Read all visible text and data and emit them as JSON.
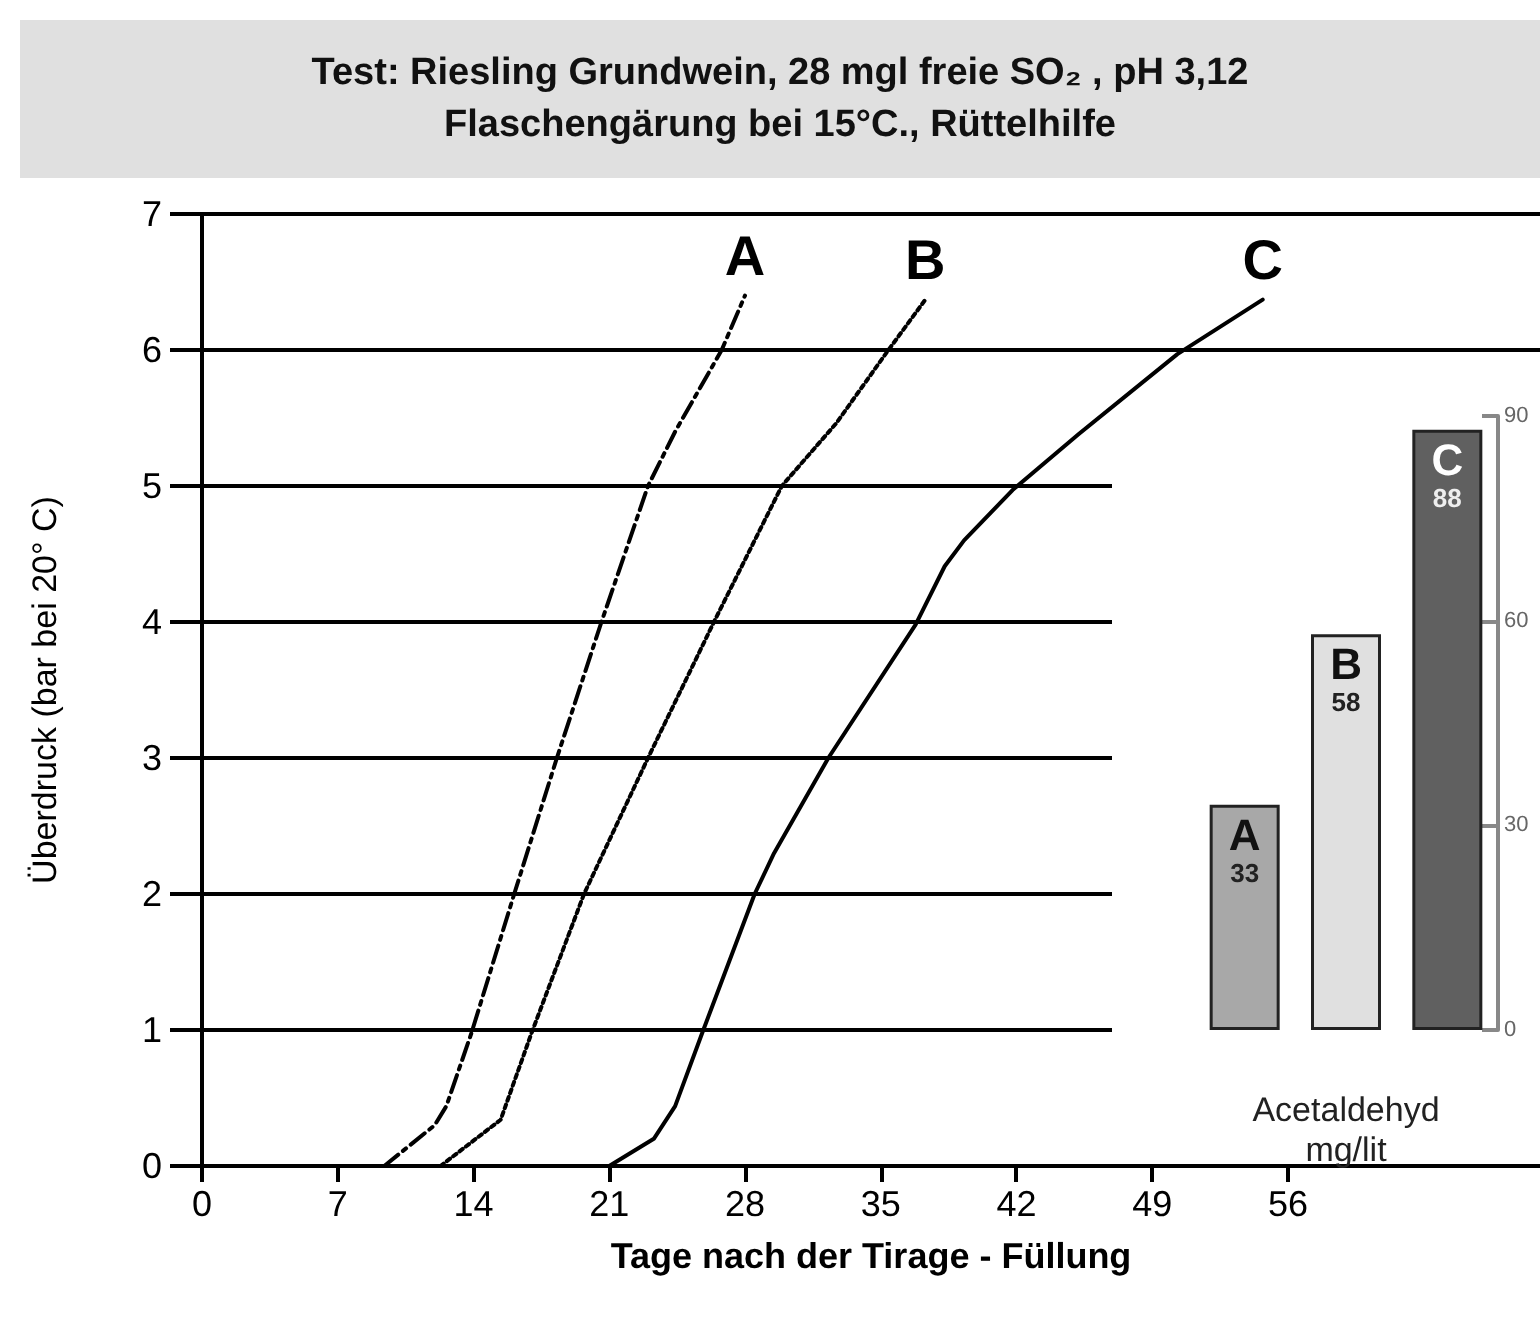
{
  "chart_data": [
    {
      "type": "line",
      "title": "Test: Riesling Grundwein, 28 mgl freie SO₂ , pH 3,12",
      "subtitle": "Flaschengärung bei 15°C., Rüttelhilfe",
      "xlabel": "Tage nach der Tirage - Füllung",
      "ylabel": "Überdruck (bar bei 20° C)",
      "xlim": [
        0,
        69
      ],
      "xticks": [
        0,
        7,
        14,
        21,
        28,
        35,
        42,
        49,
        56
      ],
      "ylim": [
        0,
        7
      ],
      "yticks": [
        0,
        1,
        2,
        3,
        4,
        5,
        6,
        7
      ],
      "grid": "y",
      "legend": false,
      "marker": "none",
      "series": [
        {
          "name": "A",
          "color": "#000000",
          "line_style": "dashed",
          "x": [
            9.4,
            12.0,
            12.6,
            13.9,
            16.1,
            18.3,
            20.6,
            23.0,
            24.4,
            26.8,
            28.0
          ],
          "values": [
            0,
            0.3,
            0.44,
            0.98,
            2.0,
            3.0,
            4.0,
            5.0,
            5.4,
            6.0,
            6.4
          ]
        },
        {
          "name": "B",
          "color": "#000000",
          "line_style": "dotted",
          "x": [
            12.3,
            15.4,
            17.0,
            19.7,
            23.0,
            26.4,
            29.9,
            32.7,
            35.4,
            37.3
          ],
          "values": [
            0,
            0.34,
            0.98,
            2.0,
            3.0,
            4.0,
            5.0,
            5.46,
            6.0,
            6.37
          ]
        },
        {
          "name": "C",
          "color": "#000000",
          "line_style": "solid",
          "x": [
            21.0,
            23.3,
            24.4,
            25.8,
            28.5,
            29.5,
            32.3,
            36.8,
            38.3,
            39.3,
            41.8,
            45.2,
            50.3,
            54.7
          ],
          "values": [
            0,
            0.2,
            0.44,
            0.98,
            2.0,
            2.3,
            3.0,
            3.98,
            4.41,
            4.6,
            4.97,
            5.38,
            5.97,
            6.37
          ]
        }
      ]
    },
    {
      "type": "bar",
      "xlabel": "Acetaldehyd mg/lit",
      "categories": [
        "A",
        "B",
        "C"
      ],
      "values": [
        33,
        58,
        88
      ],
      "colors": [
        "#a8a8a8",
        "#e0e0e0",
        "#606060"
      ],
      "ylim": [
        0,
        90
      ],
      "yticks": [
        0,
        30,
        60,
        90
      ],
      "data_labels": true,
      "grid": false
    }
  ]
}
